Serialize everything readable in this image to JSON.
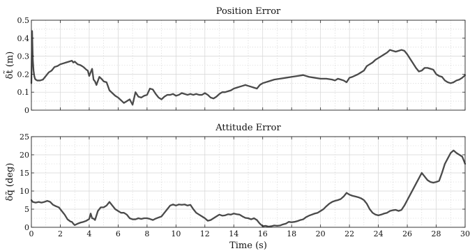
{
  "chart_data": [
    {
      "type": "line",
      "title": "Position Error",
      "xlabel": "",
      "ylabel": "δt̃ (m)",
      "xlim": [
        0,
        30
      ],
      "ylim": [
        0,
        0.5
      ],
      "xticks": [
        0,
        2,
        4,
        6,
        8,
        10,
        12,
        14,
        16,
        18,
        20,
        22,
        24,
        26,
        28,
        30
      ],
      "yticks": [
        "0",
        "0.1",
        "0.2",
        "0.3",
        "0.4",
        "0.5"
      ],
      "show_xtick_labels": false,
      "grid": true,
      "line_color": "#4a4a4a",
      "series": [
        {
          "x": [
            0,
            0.05,
            0.1,
            0.15,
            0.2,
            0.25,
            0.3,
            0.4,
            0.6,
            0.8,
            1.0,
            1.2,
            1.4,
            1.6,
            1.8,
            2.0,
            2.2,
            2.4,
            2.6,
            2.8,
            2.9,
            3.0,
            3.2,
            3.4,
            3.6,
            3.8,
            3.9,
            4.0,
            4.1,
            4.2,
            4.3,
            4.4,
            4.5,
            4.7,
            4.9,
            5.0,
            5.2,
            5.4,
            5.6,
            5.8,
            6.0,
            6.2,
            6.4,
            6.6,
            6.8,
            7.0,
            7.2,
            7.4,
            7.6,
            7.8,
            8.0,
            8.2,
            8.4,
            8.6,
            8.8,
            9.0,
            9.2,
            9.4,
            9.6,
            9.8,
            10.0,
            10.2,
            10.4,
            10.6,
            10.8,
            11.0,
            11.2,
            11.4,
            11.6,
            11.8,
            12.0,
            12.2,
            12.4,
            12.6,
            12.8,
            13.0,
            13.2,
            13.4,
            13.6,
            13.8,
            14.0,
            14.2,
            14.4,
            14.6,
            14.8,
            15.0,
            15.2,
            15.4,
            15.6,
            15.8,
            16.0,
            16.4,
            16.8,
            17.2,
            17.6,
            18.0,
            18.4,
            18.8,
            19.2,
            19.6,
            20.0,
            20.4,
            20.8,
            21.0,
            21.2,
            21.4,
            21.6,
            21.8,
            22.0,
            22.2,
            22.6,
            23.0,
            23.2,
            23.4,
            23.6,
            23.8,
            24.0,
            24.2,
            24.4,
            24.6,
            24.8,
            25.0,
            25.2,
            25.4,
            25.6,
            25.8,
            26.0,
            26.2,
            26.4,
            26.6,
            26.8,
            27.0,
            27.2,
            27.4,
            27.6,
            27.8,
            28.0,
            28.2,
            28.4,
            28.6,
            28.8,
            29.0,
            29.2,
            29.4,
            29.6,
            29.8,
            30.0
          ],
          "y": [
            0.15,
            0.44,
            0.28,
            0.22,
            0.19,
            0.175,
            0.17,
            0.165,
            0.165,
            0.17,
            0.19,
            0.21,
            0.22,
            0.24,
            0.245,
            0.255,
            0.26,
            0.265,
            0.27,
            0.275,
            0.265,
            0.27,
            0.255,
            0.25,
            0.24,
            0.225,
            0.22,
            0.19,
            0.21,
            0.23,
            0.17,
            0.16,
            0.14,
            0.185,
            0.17,
            0.16,
            0.155,
            0.11,
            0.095,
            0.08,
            0.07,
            0.055,
            0.04,
            0.05,
            0.06,
            0.03,
            0.1,
            0.075,
            0.07,
            0.08,
            0.085,
            0.12,
            0.115,
            0.09,
            0.07,
            0.06,
            0.075,
            0.085,
            0.085,
            0.09,
            0.08,
            0.085,
            0.095,
            0.09,
            0.085,
            0.09,
            0.085,
            0.09,
            0.085,
            0.085,
            0.095,
            0.085,
            0.07,
            0.065,
            0.075,
            0.09,
            0.1,
            0.1,
            0.105,
            0.11,
            0.12,
            0.125,
            0.13,
            0.135,
            0.14,
            0.135,
            0.13,
            0.125,
            0.12,
            0.14,
            0.15,
            0.16,
            0.17,
            0.175,
            0.18,
            0.185,
            0.19,
            0.195,
            0.185,
            0.18,
            0.175,
            0.175,
            0.17,
            0.165,
            0.175,
            0.17,
            0.165,
            0.155,
            0.18,
            0.185,
            0.2,
            0.22,
            0.245,
            0.255,
            0.265,
            0.28,
            0.29,
            0.3,
            0.31,
            0.32,
            0.335,
            0.33,
            0.325,
            0.33,
            0.335,
            0.33,
            0.31,
            0.285,
            0.26,
            0.235,
            0.215,
            0.22,
            0.235,
            0.235,
            0.23,
            0.225,
            0.2,
            0.19,
            0.185,
            0.165,
            0.155,
            0.15,
            0.155,
            0.165,
            0.17,
            0.18,
            0.195
          ]
        }
      ]
    },
    {
      "type": "line",
      "title": "Attitude Error",
      "xlabel": "Time (s)",
      "ylabel": "δq̃ (deg)",
      "xlim": [
        0,
        30
      ],
      "ylim": [
        0,
        25
      ],
      "xticks": [
        0,
        2,
        4,
        6,
        8,
        10,
        12,
        14,
        16,
        18,
        20,
        22,
        24,
        26,
        28,
        30
      ],
      "yticks": [
        "0",
        "5",
        "10",
        "15",
        "20",
        "25"
      ],
      "show_xtick_labels": true,
      "grid": true,
      "line_color": "#4a4a4a",
      "series": [
        {
          "x": [
            0,
            0.1,
            0.3,
            0.5,
            0.7,
            0.9,
            1.1,
            1.3,
            1.5,
            1.7,
            1.9,
            2.1,
            2.3,
            2.5,
            2.7,
            2.8,
            2.9,
            3.0,
            3.2,
            3.4,
            3.6,
            3.8,
            4.0,
            4.1,
            4.2,
            4.3,
            4.4,
            4.6,
            4.8,
            5.0,
            5.2,
            5.4,
            5.6,
            5.8,
            6.0,
            6.2,
            6.4,
            6.6,
            6.8,
            7.0,
            7.2,
            7.4,
            7.6,
            7.8,
            8.0,
            8.2,
            8.4,
            8.6,
            8.8,
            9.0,
            9.2,
            9.4,
            9.6,
            9.8,
            10.0,
            10.2,
            10.4,
            10.6,
            10.8,
            11.0,
            11.2,
            11.4,
            11.6,
            11.8,
            12.0,
            12.2,
            12.4,
            12.6,
            12.8,
            13.0,
            13.2,
            13.4,
            13.6,
            13.8,
            14.0,
            14.2,
            14.4,
            14.6,
            14.8,
            15.0,
            15.2,
            15.4,
            15.6,
            15.8,
            16.0,
            16.2,
            16.4,
            16.6,
            16.8,
            17.0,
            17.2,
            17.4,
            17.6,
            17.8,
            18.0,
            18.2,
            18.4,
            18.6,
            18.8,
            19.0,
            19.2,
            19.4,
            19.6,
            19.8,
            20.0,
            20.2,
            20.4,
            20.6,
            20.8,
            21.0,
            21.2,
            21.4,
            21.6,
            21.8,
            22.0,
            22.2,
            22.4,
            22.6,
            22.8,
            23.0,
            23.2,
            23.4,
            23.6,
            23.8,
            24.0,
            24.2,
            24.4,
            24.6,
            24.8,
            25.0,
            25.2,
            25.4,
            25.6,
            25.8,
            26.0,
            26.2,
            26.4,
            26.6,
            26.8,
            27.0,
            27.2,
            27.4,
            27.6,
            27.8,
            28.0,
            28.2,
            28.4,
            28.6,
            28.8,
            29.0,
            29.2,
            29.4,
            29.6,
            29.8,
            30.0
          ],
          "y": [
            7.5,
            7.0,
            6.8,
            7.0,
            6.8,
            7.0,
            7.3,
            7.0,
            6.2,
            5.8,
            5.5,
            4.5,
            3.5,
            2.2,
            1.6,
            1.5,
            1.0,
            0.6,
            1.0,
            1.3,
            1.5,
            1.8,
            2.3,
            3.8,
            2.5,
            2.4,
            2.0,
            4.5,
            5.5,
            5.5,
            6.0,
            7.0,
            6.0,
            5.0,
            4.5,
            4.0,
            4.0,
            3.5,
            2.5,
            2.2,
            2.2,
            2.5,
            2.3,
            2.5,
            2.5,
            2.3,
            2.0,
            2.4,
            2.7,
            3.0,
            4.0,
            5.0,
            6.0,
            6.3,
            6.0,
            6.3,
            6.2,
            6.3,
            6.0,
            6.2,
            5.0,
            4.0,
            3.5,
            3.0,
            2.5,
            1.8,
            2.0,
            2.5,
            3.0,
            3.5,
            3.2,
            3.3,
            3.6,
            3.5,
            3.8,
            3.6,
            3.5,
            3.0,
            2.6,
            2.5,
            2.2,
            2.5,
            2.0,
            1.0,
            0.3,
            0.4,
            0.2,
            0.3,
            0.5,
            0.4,
            0.5,
            0.8,
            1.0,
            1.5,
            1.4,
            1.5,
            1.7,
            2.0,
            2.2,
            2.8,
            3.2,
            3.5,
            3.8,
            4.0,
            4.5,
            5.0,
            5.8,
            6.5,
            7.0,
            7.3,
            7.5,
            7.8,
            8.5,
            9.5,
            9.0,
            8.7,
            8.5,
            8.3,
            8.0,
            7.5,
            6.5,
            5.0,
            4.0,
            3.5,
            3.3,
            3.5,
            3.8,
            4.0,
            4.5,
            4.7,
            4.8,
            4.5,
            4.8,
            6.0,
            7.5,
            9.0,
            10.5,
            12.0,
            13.5,
            15.0,
            14.0,
            13.0,
            12.5,
            12.3,
            12.5,
            12.8,
            15.0,
            17.5,
            19.0,
            20.5,
            21.2,
            20.5,
            20.0,
            19.5,
            17.5
          ]
        }
      ]
    }
  ]
}
